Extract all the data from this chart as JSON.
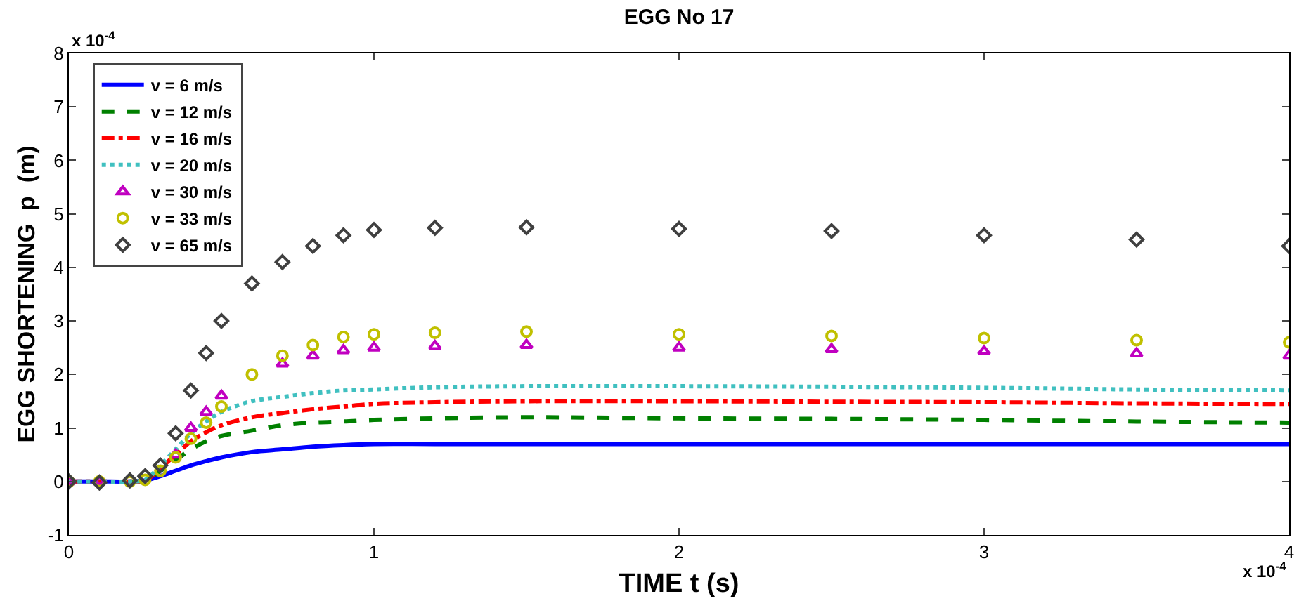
{
  "chart_data": {
    "type": "line",
    "title": "EGG No 17",
    "xlabel": "TIME t (s)",
    "ylabel": "EGG SHORTENING  p  (m)",
    "annotations": [
      "x 10$^{-4}$",
      "x 10$^{-4}$"
    ],
    "x": [
      0,
      0.1,
      0.2,
      0.25,
      0.3,
      0.35,
      0.4,
      0.45,
      0.5,
      0.6,
      0.7,
      0.8,
      0.9,
      1.0,
      1.2,
      1.5,
      2,
      2.5,
      3,
      3.5,
      4
    ],
    "series": [
      {
        "name": "v = 6 m/s",
        "color": "#0000ff",
        "line_style": "solid",
        "values": [
          0,
          0,
          0,
          0.02,
          0.1,
          0.2,
          0.3,
          0.38,
          0.45,
          0.55,
          0.6,
          0.65,
          0.68,
          0.7,
          0.7,
          0.7,
          0.7,
          0.7,
          0.7,
          0.7,
          0.7
        ]
      },
      {
        "name": "v = 12 m/s",
        "color": "#008000",
        "line_style": "dashed",
        "values": [
          null,
          null,
          0,
          0.02,
          0.2,
          0.4,
          0.6,
          0.75,
          0.85,
          0.95,
          1.05,
          1.1,
          1.12,
          1.15,
          1.18,
          1.2,
          1.18,
          1.17,
          1.15,
          1.12,
          1.1
        ]
      },
      {
        "name": "v = 16 m/s",
        "color": "#ff0000",
        "line_style": "dashdot",
        "values": [
          0,
          0,
          0,
          0.02,
          0.25,
          0.5,
          0.75,
          0.92,
          1.05,
          1.2,
          1.28,
          1.35,
          1.4,
          1.45,
          1.48,
          1.5,
          1.5,
          1.49,
          1.48,
          1.46,
          1.45
        ]
      },
      {
        "name": "v = 20 m/s",
        "color": "#40c0c0",
        "line_style": "dotted",
        "values": [
          0,
          0,
          0,
          0.03,
          0.3,
          0.6,
          0.9,
          1.12,
          1.3,
          1.5,
          1.58,
          1.65,
          1.7,
          1.72,
          1.76,
          1.78,
          1.78,
          1.77,
          1.75,
          1.72,
          1.7
        ]
      },
      {
        "name": "v = 30 m/s",
        "color": "#c000c0",
        "type": "scatter",
        "marker": "triangle",
        "values": [
          0,
          0,
          null,
          null,
          null,
          0.5,
          1.0,
          1.3,
          1.6,
          null,
          2.2,
          2.35,
          2.45,
          2.5,
          2.53,
          2.55,
          2.5,
          2.47,
          2.43,
          2.39,
          2.35
        ]
      },
      {
        "name": "v = 33 m/s",
        "color": "#c0c000",
        "type": "scatter",
        "marker": "circle",
        "values": [
          0,
          0,
          0,
          0.03,
          0.2,
          0.45,
          0.8,
          1.1,
          1.4,
          2.0,
          2.35,
          2.55,
          2.7,
          2.75,
          2.78,
          2.8,
          2.75,
          2.72,
          2.68,
          2.64,
          2.6
        ]
      },
      {
        "name": "v = 65 m/s",
        "color": "#404040",
        "type": "scatter",
        "marker": "diamond",
        "values": [
          0,
          -0.02,
          0.02,
          0.1,
          0.3,
          0.9,
          1.7,
          2.4,
          3.0,
          3.7,
          4.1,
          4.4,
          4.6,
          4.7,
          4.74,
          4.75,
          4.72,
          4.68,
          4.6,
          4.52,
          4.4
        ]
      }
    ],
    "xlim": [
      0,
      4
    ],
    "xticks": [
      0,
      1,
      2,
      3,
      4
    ],
    "ylim": [
      -1,
      8
    ],
    "yticks": [
      -1,
      0,
      1,
      2,
      3,
      4,
      5,
      6,
      7,
      8
    ],
    "legend": "top left"
  }
}
